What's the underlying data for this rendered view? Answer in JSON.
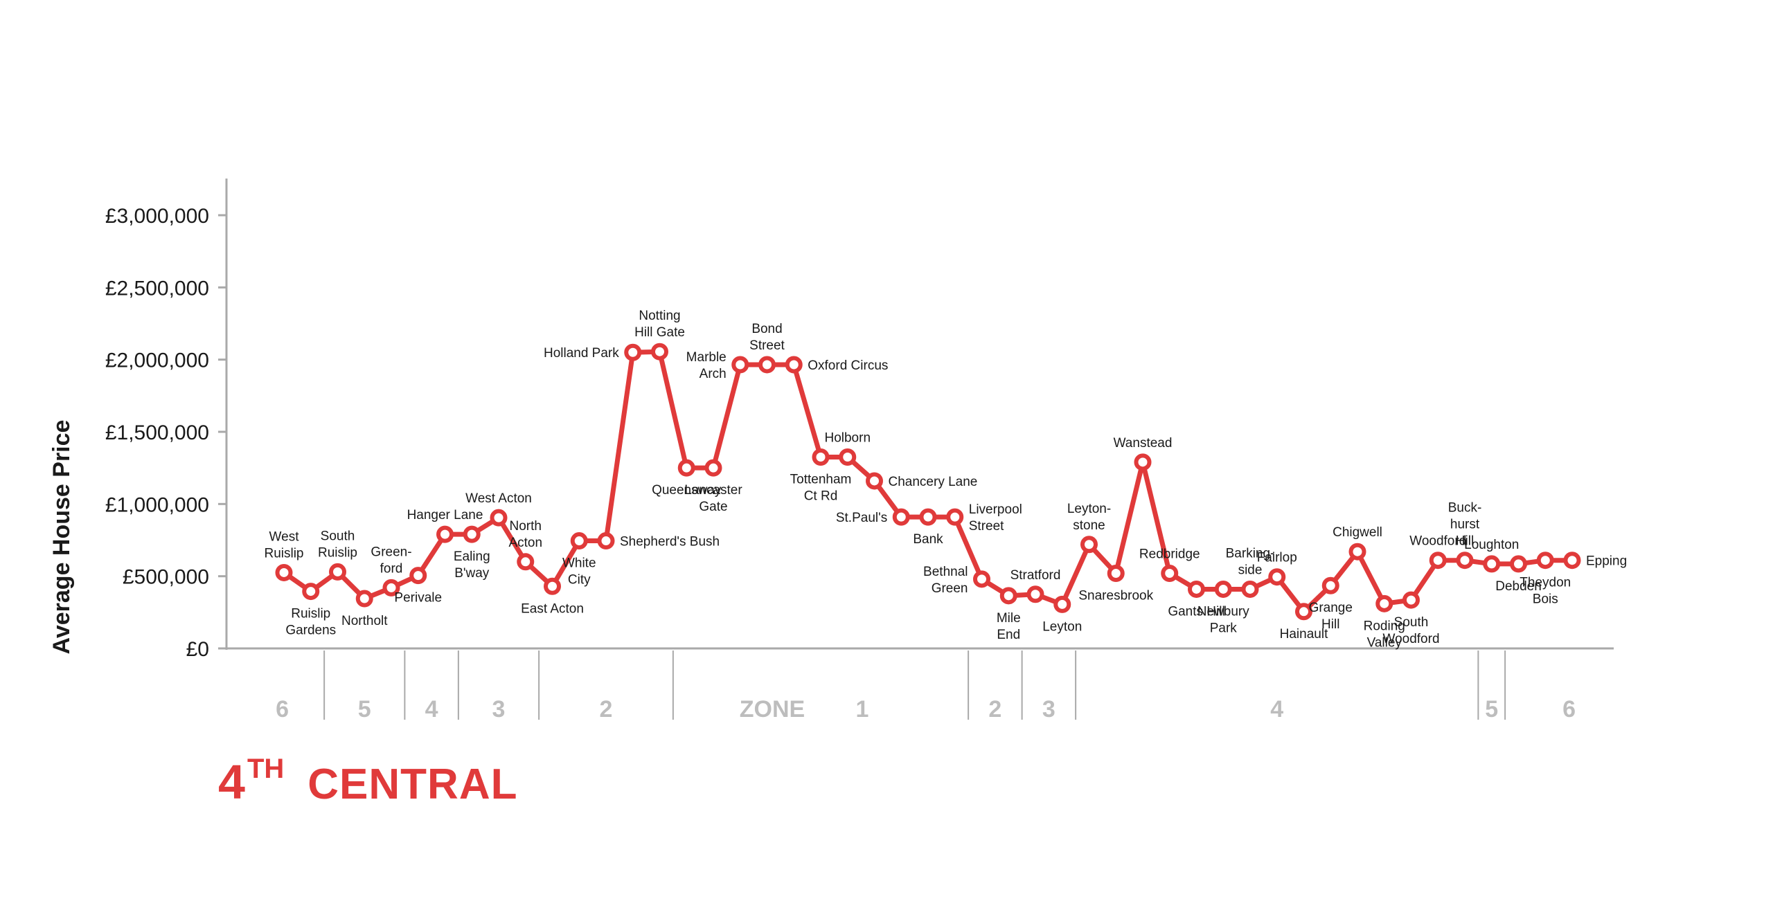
{
  "title": {
    "number": "4",
    "suffix": "TH",
    "line": "CENTRAL"
  },
  "colors": {
    "line": "#e03a3a",
    "axis": "#a9a9a9",
    "zone_text": "#bdbdbd",
    "text": "#1a1a1a"
  },
  "chart_data": {
    "type": "line",
    "ylabel": "Average House Price",
    "ylim": [
      0,
      3000000
    ],
    "yticks": [
      {
        "value": 0,
        "label": "£0"
      },
      {
        "value": 500000,
        "label": "£500,000"
      },
      {
        "value": 1000000,
        "label": "£1,000,000"
      },
      {
        "value": 1500000,
        "label": "£1,500,000"
      },
      {
        "value": 2000000,
        "label": "£2,000,000"
      },
      {
        "value": 2500000,
        "label": "£2,500,000"
      },
      {
        "value": 3000000,
        "label": "£3,000,000"
      }
    ],
    "grid": false,
    "series": [
      {
        "stations": [
          {
            "name": "West Ruislip",
            "label": [
              "West",
              "Ruislip"
            ],
            "value": 525000,
            "pos": "above"
          },
          {
            "name": "Ruislip Gardens",
            "label": [
              "Ruislip",
              "Gardens"
            ],
            "value": 395000,
            "pos": "below"
          },
          {
            "name": "South Ruislip",
            "label": [
              "South",
              "Ruislip"
            ],
            "value": 530000,
            "pos": "above"
          },
          {
            "name": "Northolt",
            "label": [
              "Northolt"
            ],
            "value": 345000,
            "pos": "below"
          },
          {
            "name": "Greenford",
            "label": [
              "Green-",
              "ford"
            ],
            "value": 420000,
            "pos": "above"
          },
          {
            "name": "Perivale",
            "label": [
              "Perivale"
            ],
            "value": 505000,
            "pos": "below"
          },
          {
            "name": "Hanger Lane",
            "label": [
              "Hanger Lane"
            ],
            "value": 790000,
            "pos": "above"
          },
          {
            "name": "Ealing Broadway",
            "label": [
              "Ealing",
              "B'way"
            ],
            "value": 790000,
            "pos": "below"
          },
          {
            "name": "West Acton",
            "label": [
              "West Acton"
            ],
            "value": 905000,
            "pos": "above"
          },
          {
            "name": "North Acton",
            "label": [
              "North",
              "Acton"
            ],
            "value": 600000,
            "pos": "above"
          },
          {
            "name": "East Acton",
            "label": [
              "East Acton"
            ],
            "value": 430000,
            "pos": "below"
          },
          {
            "name": "White City",
            "label": [
              "White",
              "City"
            ],
            "value": 745000,
            "pos": "below"
          },
          {
            "name": "Shepherd's Bush",
            "label": [
              "Shepherd's Bush"
            ],
            "value": 745000,
            "pos": "right"
          },
          {
            "name": "Holland Park",
            "label": [
              "Holland Park"
            ],
            "value": 2050000,
            "pos": "left"
          },
          {
            "name": "Notting Hill Gate",
            "label": [
              "Notting",
              "Hill Gate"
            ],
            "value": 2055000,
            "pos": "above"
          },
          {
            "name": "Queensway",
            "label": [
              "Queensway"
            ],
            "value": 1250000,
            "pos": "below"
          },
          {
            "name": "Lancaster Gate",
            "label": [
              "Lancaster",
              "Gate"
            ],
            "value": 1250000,
            "pos": "below"
          },
          {
            "name": "Marble Arch",
            "label": [
              "Marble",
              "Arch"
            ],
            "value": 1965000,
            "pos": "left"
          },
          {
            "name": "Bond Street",
            "label": [
              "Bond",
              "Street"
            ],
            "value": 1965000,
            "pos": "above"
          },
          {
            "name": "Oxford Circus",
            "label": [
              "Oxford Circus"
            ],
            "value": 1965000,
            "pos": "right"
          },
          {
            "name": "Tottenham Court Road",
            "label": [
              "Tottenham",
              "Ct Rd"
            ],
            "value": 1325000,
            "pos": "below"
          },
          {
            "name": "Holborn",
            "label": [
              "Holborn"
            ],
            "value": 1325000,
            "pos": "above"
          },
          {
            "name": "Chancery Lane",
            "label": [
              "Chancery Lane"
            ],
            "value": 1160000,
            "pos": "right"
          },
          {
            "name": "St. Paul's",
            "label": [
              "St.Paul's"
            ],
            "value": 910000,
            "pos": "left"
          },
          {
            "name": "Bank",
            "label": [
              "Bank"
            ],
            "value": 910000,
            "pos": "below"
          },
          {
            "name": "Liverpool Street",
            "label": [
              "Liverpool",
              "Street"
            ],
            "value": 910000,
            "pos": "right"
          },
          {
            "name": "Bethnal Green",
            "label": [
              "Bethnal",
              "Green"
            ],
            "value": 480000,
            "pos": "left"
          },
          {
            "name": "Mile End",
            "label": [
              "Mile",
              "End"
            ],
            "value": 365000,
            "pos": "below"
          },
          {
            "name": "Stratford",
            "label": [
              "Stratford"
            ],
            "value": 375000,
            "pos": "above"
          },
          {
            "name": "Leyton",
            "label": [
              "Leyton"
            ],
            "value": 305000,
            "pos": "below"
          },
          {
            "name": "Leytonstone",
            "label": [
              "Leyton-",
              "stone"
            ],
            "value": 720000,
            "pos": "above"
          },
          {
            "name": "Snaresbrook",
            "label": [
              "Snaresbrook"
            ],
            "value": 520000,
            "pos": "below"
          },
          {
            "name": "Wanstead",
            "label": [
              "Wanstead"
            ],
            "value": 1290000,
            "pos": "above"
          },
          {
            "name": "Redbridge",
            "label": [
              "Redbridge"
            ],
            "value": 520000,
            "pos": "above"
          },
          {
            "name": "Gants Hill",
            "label": [
              "Gants Hill"
            ],
            "value": 410000,
            "pos": "below"
          },
          {
            "name": "Newbury Park",
            "label": [
              "Newbury",
              "Park"
            ],
            "value": 410000,
            "pos": "below"
          },
          {
            "name": "Barkingside",
            "label": [
              "Barking-",
              "side"
            ],
            "value": 410000,
            "pos": "above"
          },
          {
            "name": "Fairlop",
            "label": [
              "Fairlop"
            ],
            "value": 495000,
            "pos": "above"
          },
          {
            "name": "Hainault",
            "label": [
              "Hainault"
            ],
            "value": 255000,
            "pos": "below"
          },
          {
            "name": "Grange Hill",
            "label": [
              "Grange",
              "Hill"
            ],
            "value": 435000,
            "pos": "below"
          },
          {
            "name": "Chigwell",
            "label": [
              "Chigwell"
            ],
            "value": 670000,
            "pos": "above"
          },
          {
            "name": "Roding Valley",
            "label": [
              "Roding",
              "Valley"
            ],
            "value": 310000,
            "pos": "below"
          },
          {
            "name": "South Woodford",
            "label": [
              "South",
              "Woodford"
            ],
            "value": 335000,
            "pos": "below"
          },
          {
            "name": "Woodford",
            "label": [
              "Woodford"
            ],
            "value": 610000,
            "pos": "above"
          },
          {
            "name": "Buckhurst Hill",
            "label": [
              "Buck-",
              "hurst",
              "Hill"
            ],
            "value": 610000,
            "pos": "above"
          },
          {
            "name": "Loughton",
            "label": [
              "Loughton"
            ],
            "value": 585000,
            "pos": "above"
          },
          {
            "name": "Debden",
            "label": [
              "Debden"
            ],
            "value": 585000,
            "pos": "below"
          },
          {
            "name": "Theydon Bois",
            "label": [
              "Theydon",
              "Bois"
            ],
            "value": 610000,
            "pos": "below"
          },
          {
            "name": "Epping",
            "label": [
              "Epping"
            ],
            "value": 610000,
            "pos": "right"
          }
        ]
      }
    ],
    "zones": [
      {
        "label": "6",
        "from_station": 0,
        "to_station": 2
      },
      {
        "label": "5",
        "from_station": 2,
        "to_station": 5
      },
      {
        "label": "4",
        "from_station": 5,
        "to_station": 7
      },
      {
        "label": "3",
        "from_station": 7,
        "to_station": 10
      },
      {
        "label": "2",
        "from_station": 10,
        "to_station": 15
      },
      {
        "label": "ZONE",
        "from_station": 15,
        "to_station": 20
      },
      {
        "label": "1",
        "from_station": 20,
        "to_station": 26
      },
      {
        "label": "2",
        "from_station": 26,
        "to_station": 28
      },
      {
        "label": "3",
        "from_station": 28,
        "to_station": 30
      },
      {
        "label": "4",
        "from_station": 30,
        "to_station": 45
      },
      {
        "label": "5",
        "from_station": 45,
        "to_station": 46
      },
      {
        "label": "6",
        "from_station": 46,
        "to_station": 49
      }
    ]
  }
}
